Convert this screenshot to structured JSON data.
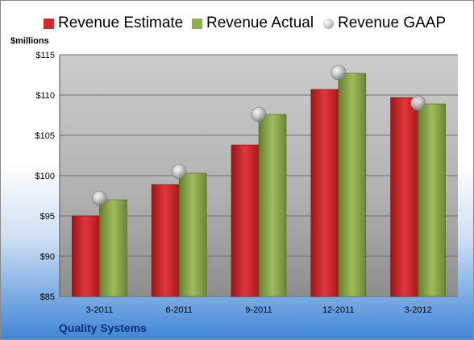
{
  "legend": {
    "estimate": "Revenue Estimate",
    "actual": "Revenue Actual",
    "gaap": "Revenue GAAP"
  },
  "unit_label": "$millions",
  "company": "Quality Systems",
  "colors": {
    "estimate": "#d42a2f",
    "actual": "#8faf4e",
    "gaap": "#b5b5b5"
  },
  "chart_data": {
    "type": "bar",
    "categories": [
      "3-2011",
      "6-2011",
      "9-2011",
      "12-2011",
      "3-2012"
    ],
    "series": [
      {
        "name": "Revenue Estimate",
        "values": [
          95.0,
          98.9,
          103.8,
          110.7,
          109.7
        ]
      },
      {
        "name": "Revenue Actual",
        "values": [
          97.0,
          100.3,
          107.6,
          112.7,
          108.9
        ]
      },
      {
        "name": "Revenue GAAP",
        "values": [
          97.2,
          100.5,
          107.6,
          112.8,
          109.0
        ],
        "marker": "circle"
      }
    ],
    "y_ticks": [
      "$85",
      "$90",
      "$95",
      "$100",
      "$105",
      "$110",
      "$115"
    ],
    "ylim": [
      85,
      115
    ],
    "y_step": 5,
    "grid": true,
    "legend_position": "top"
  }
}
